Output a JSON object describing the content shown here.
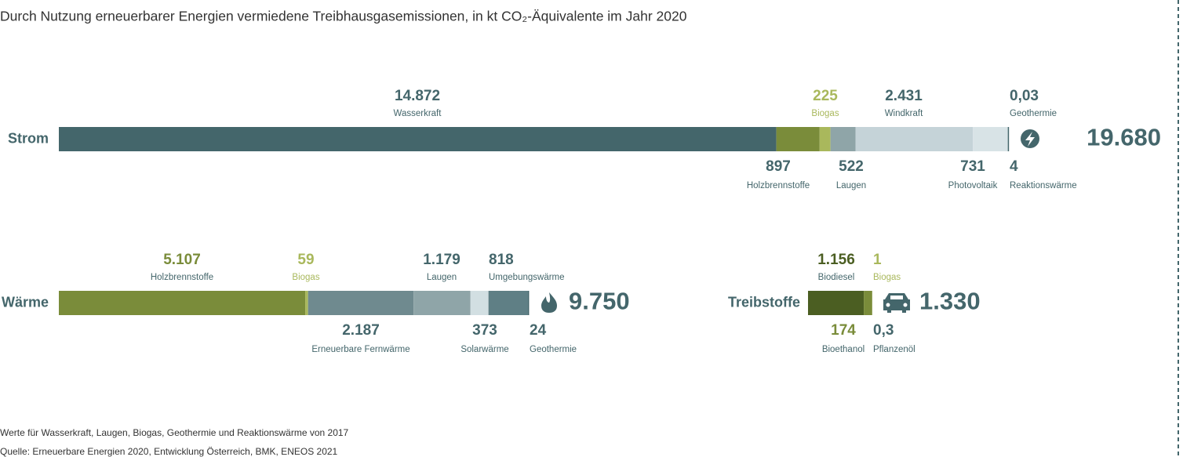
{
  "title": "Durch Nutzung erneuerbarer Energien vermiedene Treibhausgasemissionen, in kt CO₂-Äquivalente im Jahr 2020",
  "notes": [
    "Werte für Wasserkraft, Laugen, Biogas, Geothermie und Reaktionswärme von 2017",
    "Quelle: Erneuerbare Energien 2020, Entwicklung Österreich, BMK, ENEOS 2021"
  ],
  "chart_data": [
    {
      "type": "stacked_bar",
      "categories": [
        "Strom"
      ],
      "total": {
        "value": 19680,
        "label": "19.680"
      },
      "series": [
        {
          "name": "Wasserkraft",
          "color": "#44666b",
          "values": [
            14872
          ],
          "value_labels": [
            "14.872"
          ]
        },
        {
          "name": "Holzbrennstoffe",
          "color": "#7a8c3a",
          "values": [
            897
          ],
          "value_labels": [
            "897"
          ]
        },
        {
          "name": "Biogas",
          "color": "#a9b85c",
          "values": [
            225
          ],
          "value_labels": [
            "225"
          ]
        },
        {
          "name": "Laugen",
          "color": "#8fa5a8",
          "values": [
            522
          ],
          "value_labels": [
            "522"
          ]
        },
        {
          "name": "Windkraft",
          "color": "#c5d3d8",
          "values": [
            2431
          ],
          "value_labels": [
            "2.431"
          ]
        },
        {
          "name": "Photovoltaik",
          "color": "#d8e3e6",
          "values": [
            731
          ],
          "value_labels": [
            "731"
          ]
        },
        {
          "name": "Geothermie",
          "color": "#44666b",
          "values": [
            0.03
          ],
          "value_labels": [
            "0,03"
          ]
        },
        {
          "name": "Reaktionswärme",
          "color": "#5f7f85",
          "values": [
            4
          ],
          "value_labels": [
            "4"
          ]
        }
      ]
    },
    {
      "type": "stacked_bar",
      "categories": [
        "Wärme"
      ],
      "total": {
        "value": 9750,
        "label": "9.750"
      },
      "series": [
        {
          "name": "Holzbrennstoffe",
          "color": "#7a8c3a",
          "values": [
            5107
          ],
          "value_labels": [
            "5.107"
          ]
        },
        {
          "name": "Biogas",
          "color": "#a9b85c",
          "values": [
            59
          ],
          "value_labels": [
            "59"
          ]
        },
        {
          "name": "Erneuerbare Fernwärme",
          "color": "#6f8a8f",
          "values": [
            2187
          ],
          "value_labels": [
            "2.187"
          ]
        },
        {
          "name": "Laugen",
          "color": "#8fa5a8",
          "values": [
            1179
          ],
          "value_labels": [
            "1.179"
          ]
        },
        {
          "name": "Solarwärme",
          "color": "#d2dfe2",
          "values": [
            373
          ],
          "value_labels": [
            "373"
          ]
        },
        {
          "name": "Umgebungswärme",
          "color": "#5f7f85",
          "values": [
            818
          ],
          "value_labels": [
            "818"
          ]
        },
        {
          "name": "Geothermie",
          "color": "#44666b",
          "values": [
            24
          ],
          "value_labels": [
            "24"
          ]
        }
      ]
    },
    {
      "type": "stacked_bar",
      "categories": [
        "Treibstoffe"
      ],
      "total": {
        "value": 1330,
        "label": "1.330"
      },
      "series": [
        {
          "name": "Biodiesel",
          "color": "#4b5e22",
          "values": [
            1156
          ],
          "value_labels": [
            "1.156"
          ]
        },
        {
          "name": "Bioethanol",
          "color": "#7a8c3a",
          "values": [
            174
          ],
          "value_labels": [
            "174"
          ]
        },
        {
          "name": "Biogas",
          "color": "#a9b85c",
          "values": [
            1
          ],
          "value_labels": [
            "1"
          ]
        },
        {
          "name": "Pflanzenöl",
          "color": "#8fa5a8",
          "values": [
            0.3
          ],
          "value_labels": [
            "0,3"
          ]
        }
      ]
    }
  ]
}
